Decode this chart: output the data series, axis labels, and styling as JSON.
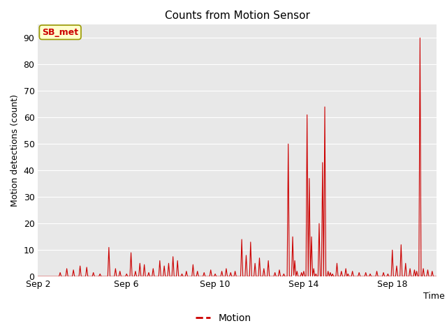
{
  "title": "Counts from Motion Sensor",
  "ylabel": "Motion detections (count)",
  "xlabel": "Time",
  "ylim": [
    0,
    95
  ],
  "yticks": [
    0,
    10,
    20,
    30,
    40,
    50,
    60,
    70,
    80,
    90
  ],
  "xtick_labels": [
    "Sep 2",
    "Sep 6",
    "Sep 10",
    "Sep 14",
    "Sep 18"
  ],
  "xtick_positions": [
    0,
    4,
    8,
    12,
    16
  ],
  "xlim": [
    0,
    18
  ],
  "line_color": "#cc0000",
  "plot_bg_color": "#e8e8e8",
  "grid_color": "#ffffff",
  "legend_label": "Motion",
  "sensor_label": "SB_met",
  "sensor_label_color": "#cc0000",
  "sensor_label_bg": "#ffffcc",
  "sensor_label_border": "#999900",
  "spikes": [
    [
      1.0,
      1.5
    ],
    [
      1.3,
      3.0
    ],
    [
      1.6,
      2.5
    ],
    [
      1.9,
      4.0
    ],
    [
      2.2,
      3.5
    ],
    [
      2.5,
      1.5
    ],
    [
      2.8,
      1.0
    ],
    [
      3.2,
      11.0
    ],
    [
      3.5,
      3.0
    ],
    [
      3.7,
      2.0
    ],
    [
      4.0,
      1.0
    ],
    [
      4.2,
      9.0
    ],
    [
      4.4,
      2.0
    ],
    [
      4.6,
      5.0
    ],
    [
      4.8,
      4.5
    ],
    [
      5.0,
      1.5
    ],
    [
      5.2,
      3.0
    ],
    [
      5.5,
      6.0
    ],
    [
      5.7,
      4.0
    ],
    [
      5.9,
      5.0
    ],
    [
      6.1,
      7.5
    ],
    [
      6.3,
      6.0
    ],
    [
      6.5,
      1.0
    ],
    [
      6.7,
      2.0
    ],
    [
      7.0,
      4.5
    ],
    [
      7.2,
      2.0
    ],
    [
      7.5,
      1.5
    ],
    [
      7.8,
      2.5
    ],
    [
      8.0,
      1.0
    ],
    [
      8.3,
      2.0
    ],
    [
      8.5,
      3.0
    ],
    [
      8.7,
      1.5
    ],
    [
      8.9,
      2.0
    ],
    [
      9.2,
      14.0
    ],
    [
      9.4,
      8.0
    ],
    [
      9.6,
      13.0
    ],
    [
      9.8,
      5.0
    ],
    [
      10.0,
      7.0
    ],
    [
      10.2,
      3.0
    ],
    [
      10.4,
      6.0
    ],
    [
      10.7,
      1.5
    ],
    [
      10.9,
      2.5
    ],
    [
      11.1,
      1.0
    ],
    [
      11.3,
      50.0
    ],
    [
      11.5,
      15.0
    ],
    [
      11.6,
      6.0
    ],
    [
      11.7,
      2.0
    ],
    [
      11.9,
      1.5
    ],
    [
      12.0,
      2.0
    ],
    [
      12.15,
      61.0
    ],
    [
      12.25,
      37.0
    ],
    [
      12.35,
      15.0
    ],
    [
      12.45,
      3.0
    ],
    [
      12.55,
      1.0
    ],
    [
      12.7,
      20.0
    ],
    [
      12.85,
      43.0
    ],
    [
      12.95,
      64.0
    ],
    [
      13.1,
      2.0
    ],
    [
      13.2,
      1.5
    ],
    [
      13.3,
      1.0
    ],
    [
      13.5,
      5.0
    ],
    [
      13.7,
      2.0
    ],
    [
      13.9,
      3.0
    ],
    [
      14.0,
      1.0
    ],
    [
      14.2,
      2.0
    ],
    [
      14.5,
      1.5
    ],
    [
      16.0,
      10.0
    ],
    [
      16.2,
      4.0
    ],
    [
      16.4,
      12.0
    ],
    [
      16.6,
      5.0
    ],
    [
      16.8,
      3.0
    ],
    [
      17.0,
      2.5
    ],
    [
      17.1,
      2.0
    ],
    [
      17.25,
      90.0
    ],
    [
      17.4,
      3.0
    ],
    [
      17.6,
      2.5
    ],
    [
      17.8,
      2.0
    ],
    [
      14.8,
      1.5
    ],
    [
      15.0,
      1.0
    ],
    [
      15.3,
      2.0
    ],
    [
      15.6,
      1.5
    ],
    [
      15.8,
      1.0
    ]
  ]
}
